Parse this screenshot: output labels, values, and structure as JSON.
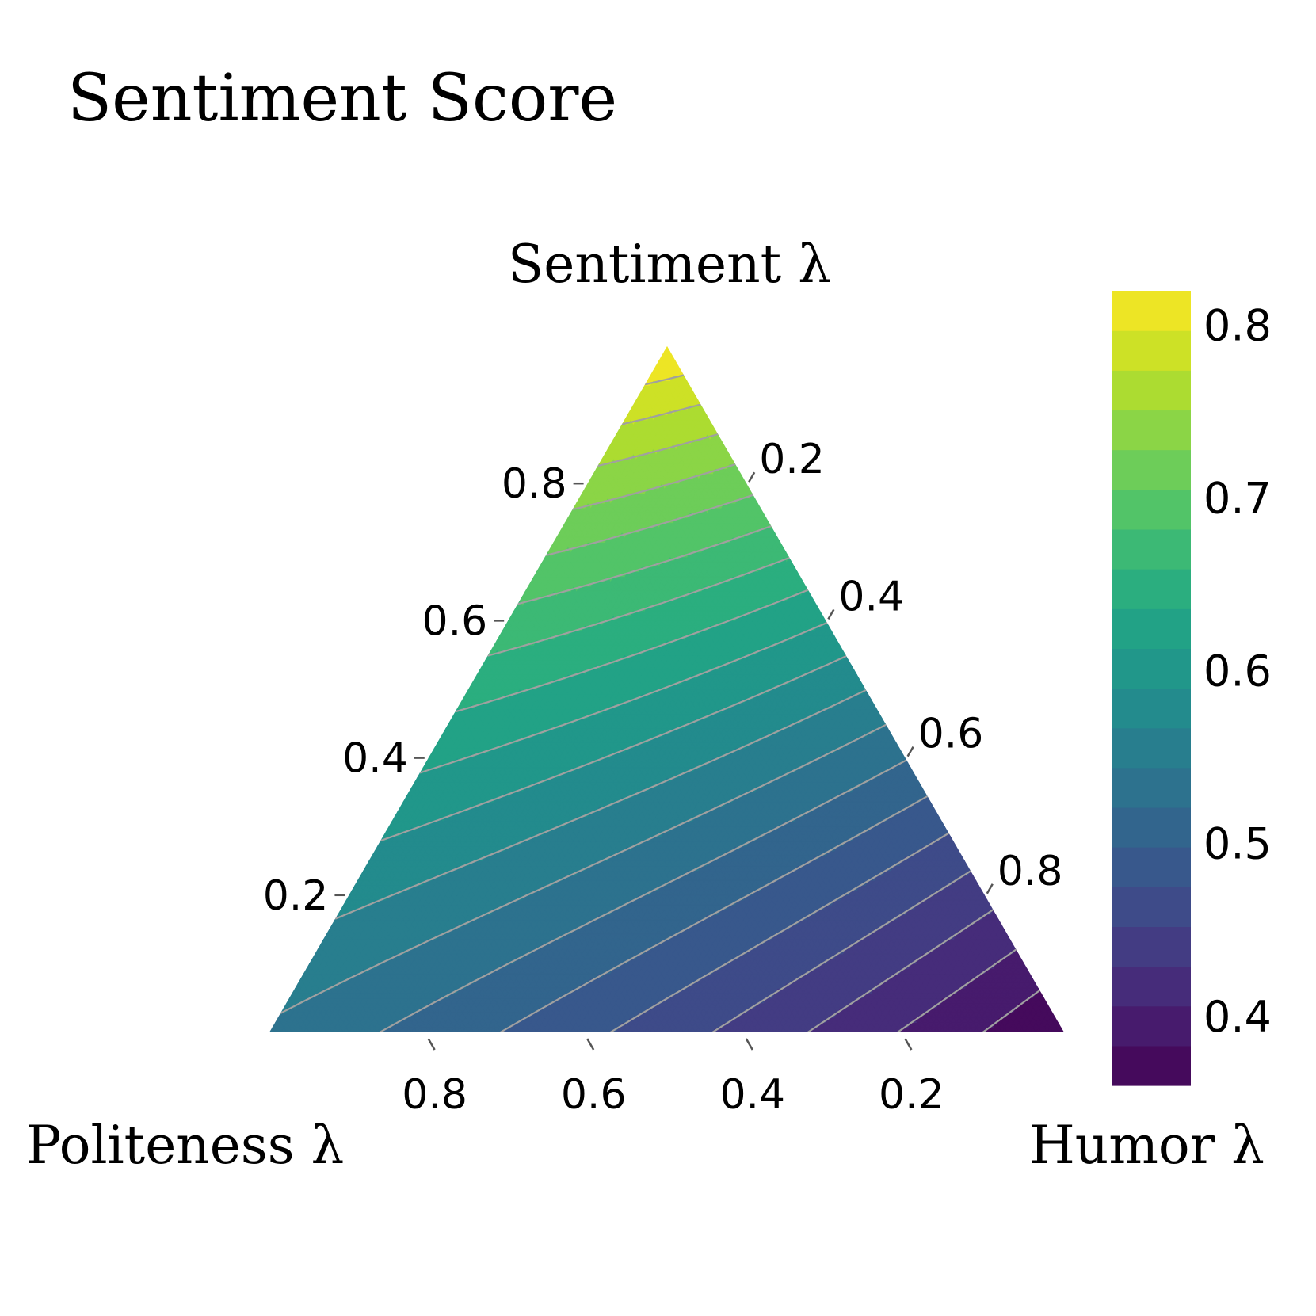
{
  "chart_data": {
    "type": "ternary-contour",
    "title": "Sentiment Score",
    "axes": {
      "top": {
        "label": "Sentiment λ",
        "ticks": [
          "0.2",
          "0.4",
          "0.6",
          "0.8"
        ]
      },
      "left": {
        "label": "Politeness λ",
        "ticks": [
          "0.2",
          "0.4",
          "0.6",
          "0.8"
        ]
      },
      "right": {
        "label": "Humor λ",
        "ticks": [
          "0.2",
          "0.4",
          "0.6",
          "0.8"
        ]
      }
    },
    "colorbar": {
      "colormap": "viridis",
      "range": [
        0.36,
        0.82
      ],
      "levels": 20,
      "ticks": [
        0.4,
        0.5,
        0.6,
        0.7,
        0.8
      ],
      "tick_labels": [
        "0.4",
        "0.5",
        "0.6",
        "0.7",
        "0.8"
      ]
    },
    "corner_values": {
      "sentiment": 0.82,
      "politeness": 0.54,
      "humor": 0.36
    },
    "contour_line_color": "#a0a0a0"
  }
}
